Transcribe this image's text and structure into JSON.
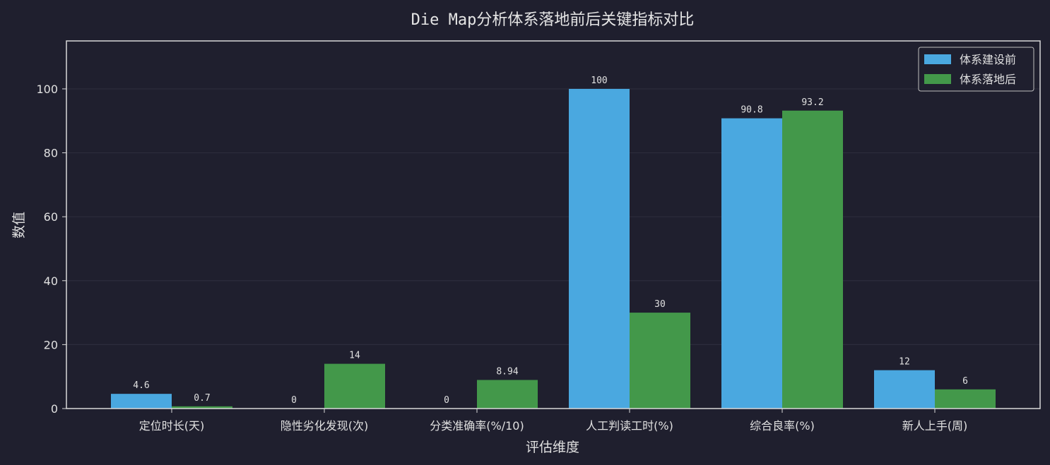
{
  "colors": {
    "background": "#1f1f2e",
    "before": "#4aa8e0",
    "after": "#43984a",
    "axis": "#d9d9d9",
    "grid": "#2c2c3c"
  },
  "chart_data": {
    "type": "bar",
    "title": "Die Map分析体系落地前后关键指标对比",
    "xlabel": "评估维度",
    "ylabel": "数值",
    "ylim": [
      0,
      115
    ],
    "yticks": [
      0,
      20,
      40,
      60,
      80,
      100
    ],
    "grid": true,
    "legend_position": "top-right",
    "categories": [
      "定位时长(天)",
      "隐性劣化发现(次)",
      "分类准确率(%/10)",
      "人工判读工时(%)",
      "综合良率(%)",
      "新人上手(周)"
    ],
    "series": [
      {
        "name": "体系建设前",
        "values": [
          4.6,
          0,
          0,
          100,
          90.8,
          12
        ],
        "labels": [
          "4.6",
          "0",
          "0",
          "100",
          "90.8",
          "12"
        ]
      },
      {
        "name": "体系落地后",
        "values": [
          0.7,
          14,
          8.94,
          30,
          93.2,
          6
        ],
        "labels": [
          "0.7",
          "14",
          "8.94",
          "30",
          "93.2",
          "6"
        ]
      }
    ]
  }
}
